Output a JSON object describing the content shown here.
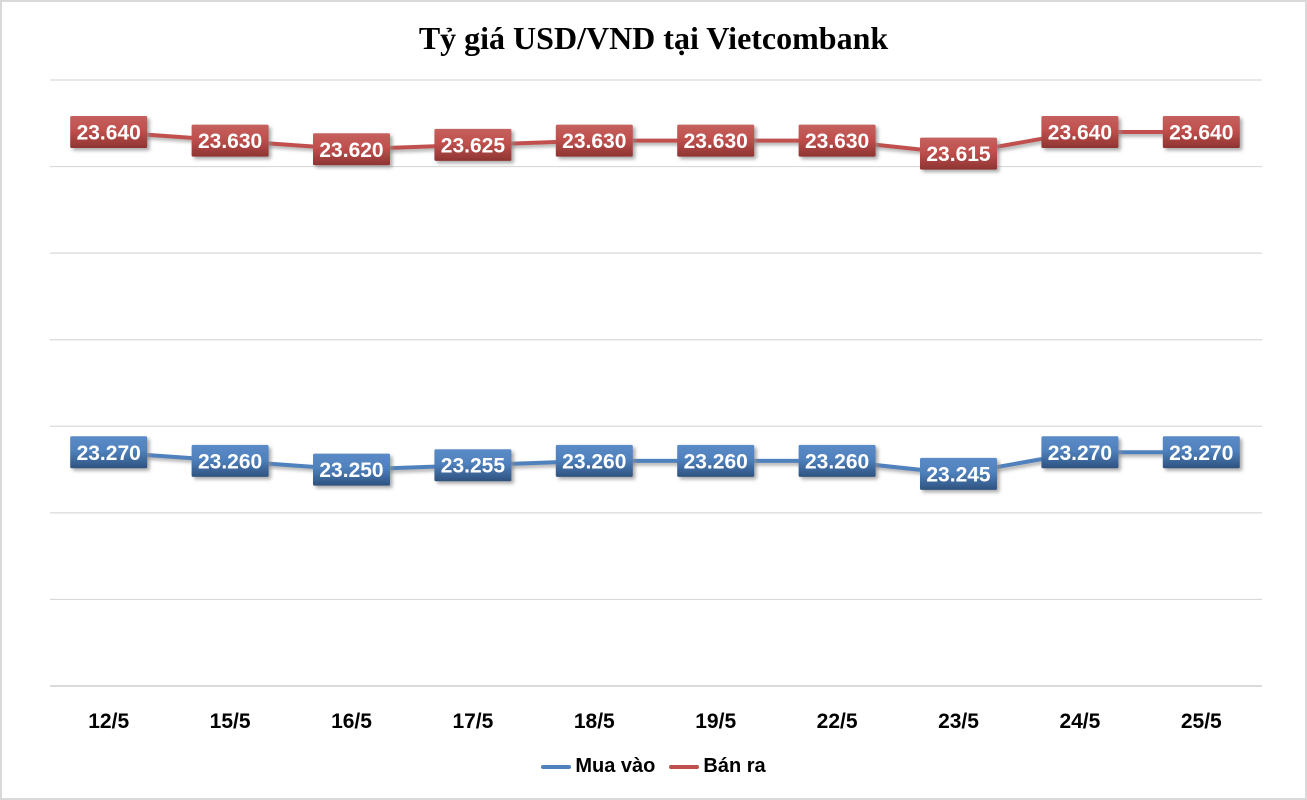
{
  "chart_data": {
    "type": "line",
    "title": "Tỷ giá USD/VND tại Vietcombank",
    "categories": [
      "12/5",
      "15/5",
      "16/5",
      "17/5",
      "18/5",
      "19/5",
      "22/5",
      "23/5",
      "24/5",
      "25/5"
    ],
    "series": [
      {
        "name": "Mua vào",
        "color": "#4F81BD",
        "box_gradient_top": "#5B8BC7",
        "box_gradient_bottom": "#2E527F",
        "values": [
          23270,
          23260,
          23250,
          23255,
          23260,
          23260,
          23260,
          23245,
          23270,
          23270
        ],
        "labels": [
          "23.270",
          "23.260",
          "23.250",
          "23.255",
          "23.260",
          "23.260",
          "23.260",
          "23.245",
          "23.270",
          "23.270"
        ]
      },
      {
        "name": "Bán ra",
        "color": "#C0504D",
        "box_gradient_top": "#C4615E",
        "box_gradient_bottom": "#8E3432",
        "values": [
          23640,
          23630,
          23620,
          23625,
          23630,
          23630,
          23630,
          23615,
          23640,
          23640
        ],
        "labels": [
          "23.640",
          "23.630",
          "23.620",
          "23.625",
          "23.630",
          "23.630",
          "23.630",
          "23.615",
          "23.640",
          "23.640"
        ]
      }
    ],
    "ylim": [
      23000,
      23700
    ],
    "gridline_step": 100,
    "grid": "horizontal",
    "y_axis_labels_visible": false,
    "data_labels": "boxed, white bold text, centered on point",
    "legend_position": "bottom",
    "gridline_color": "#D9D9D9",
    "axis_line_color": "#C3C3C3"
  }
}
